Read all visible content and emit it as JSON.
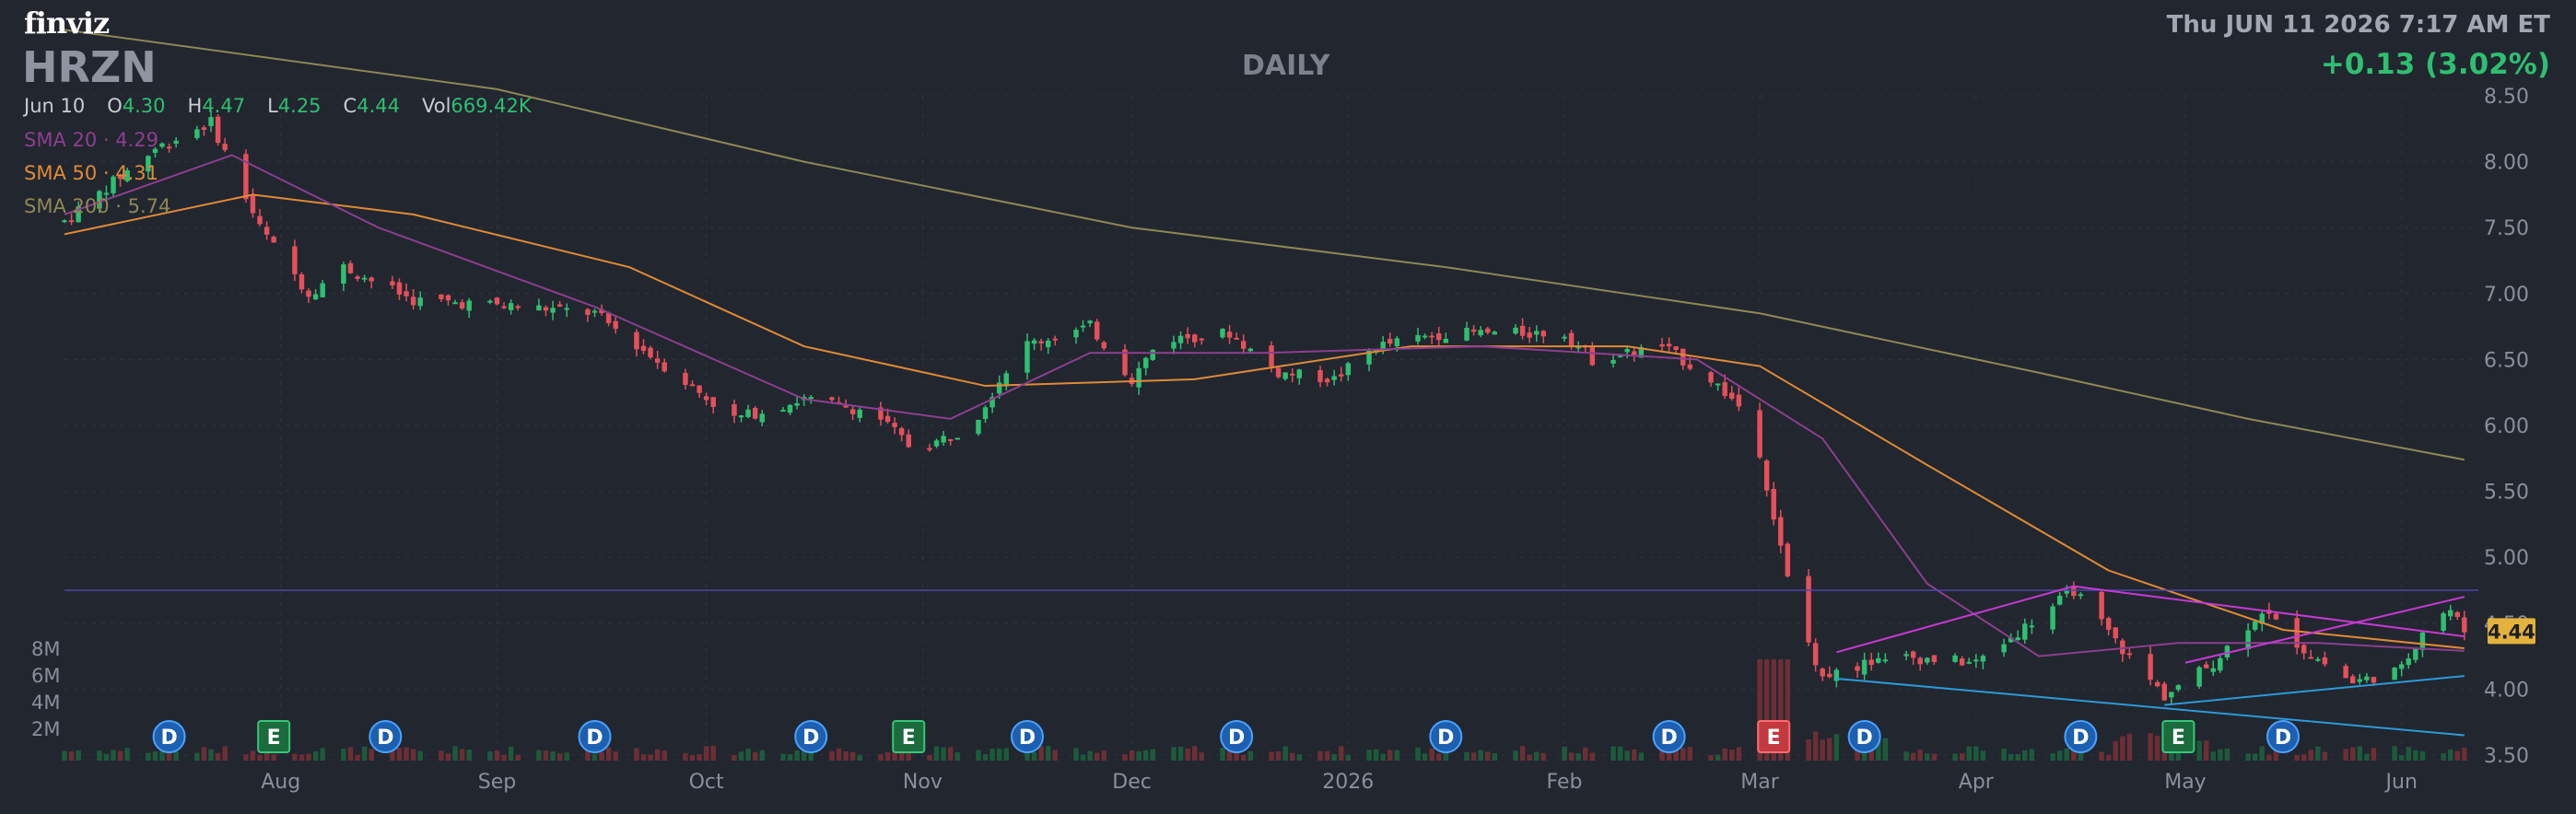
{
  "header": {
    "logo": "finviz",
    "ticker": "HRZN",
    "timeframe": "DAILY",
    "datetime": "Thu JUN 11 2026 7:17 AM ET",
    "change": "+0.13 (3.02%)"
  },
  "ohlc": {
    "date": "Jun 10",
    "open_label": "O",
    "open": "4.30",
    "high_label": "H",
    "high": "4.47",
    "low_label": "L",
    "low": "4.25",
    "close_label": "C",
    "close": "4.44",
    "vol_label": "Vol",
    "volume": "669.42K"
  },
  "indicators": [
    {
      "label": "SMA 20",
      "value": "4.29",
      "color": "#8c3f8f"
    },
    {
      "label": "SMA 50",
      "value": "4.31",
      "color": "#e08a35"
    },
    {
      "label": "SMA 200",
      "value": "5.74",
      "color": "#8f8755"
    }
  ],
  "colors": {
    "background": "#22262f",
    "up": "#2fbf71",
    "down": "#e4505b",
    "grid": "#2f333d",
    "horizontal_line": "#4b47a8",
    "upper_channel": "#c43ad1",
    "lower_channel": "#2c9ad6"
  },
  "chart_data": {
    "type": "candlestick",
    "ylim": [
      3.5,
      8.5
    ],
    "y_ticks": [
      "8.50",
      "8.00",
      "7.50",
      "7.00",
      "6.50",
      "6.00",
      "5.50",
      "5.00",
      "4.50",
      "4.00",
      "3.50"
    ],
    "x_ticks": [
      "Aug",
      "Sep",
      "Oct",
      "Nov",
      "Dec",
      "2026",
      "Feb",
      "Mar",
      "Apr",
      "May",
      "Jun"
    ],
    "volume_ticks": [
      "8M",
      "6M",
      "4M",
      "2M"
    ],
    "last_price": "4.44",
    "horizontal_line_price": 4.75,
    "price_path": [
      {
        "t": "Jul 1",
        "p": 7.55
      },
      {
        "t": "Jul 14",
        "p": 8.1
      },
      {
        "t": "Jul 22",
        "p": 8.3
      },
      {
        "t": "Jul 29",
        "p": 7.5
      },
      {
        "t": "Aug 5",
        "p": 7.0
      },
      {
        "t": "Aug 10",
        "p": 7.2
      },
      {
        "t": "Aug 20",
        "p": 6.95
      },
      {
        "t": "Sep 5",
        "p": 6.9
      },
      {
        "t": "Sep 15",
        "p": 6.85
      },
      {
        "t": "Sep 25",
        "p": 6.45
      },
      {
        "t": "Oct 5",
        "p": 6.05
      },
      {
        "t": "Oct 15",
        "p": 6.2
      },
      {
        "t": "Oct 25",
        "p": 6.1
      },
      {
        "t": "Oct 31",
        "p": 5.8
      },
      {
        "t": "Nov 8",
        "p": 6.0
      },
      {
        "t": "Nov 15",
        "p": 6.6
      },
      {
        "t": "Nov 25",
        "p": 6.75
      },
      {
        "t": "Dec 1",
        "p": 6.35
      },
      {
        "t": "Dec 5",
        "p": 6.65
      },
      {
        "t": "Dec 15",
        "p": 6.7
      },
      {
        "t": "Dec 22",
        "p": 6.4
      },
      {
        "t": "Dec 30",
        "p": 6.35
      },
      {
        "t": "Jan 5",
        "p": 6.6
      },
      {
        "t": "Jan 15",
        "p": 6.7
      },
      {
        "t": "Jan 25",
        "p": 6.7
      },
      {
        "t": "Feb 1",
        "p": 6.7
      },
      {
        "t": "Feb 5",
        "p": 6.5
      },
      {
        "t": "Feb 15",
        "p": 6.6
      },
      {
        "t": "Feb 22",
        "p": 6.35
      },
      {
        "t": "Feb 28",
        "p": 6.05
      },
      {
        "t": "Mar 3",
        "p": 5.3
      },
      {
        "t": "Mar 6",
        "p": 4.6
      },
      {
        "t": "Mar 10",
        "p": 4.1
      },
      {
        "t": "Mar 20",
        "p": 4.25
      },
      {
        "t": "Apr 1",
        "p": 4.2
      },
      {
        "t": "Apr 10",
        "p": 4.55
      },
      {
        "t": "Apr 15",
        "p": 4.75
      },
      {
        "t": "Apr 22",
        "p": 4.3
      },
      {
        "t": "Apr 28",
        "p": 3.95
      },
      {
        "t": "May 5",
        "p": 4.2
      },
      {
        "t": "May 12",
        "p": 4.6
      },
      {
        "t": "May 18",
        "p": 4.3
      },
      {
        "t": "May 25",
        "p": 4.05
      },
      {
        "t": "Jun 1",
        "p": 4.15
      },
      {
        "t": "Jun 5",
        "p": 4.55
      },
      {
        "t": "Jun 8",
        "p": 4.6
      },
      {
        "t": "Jun 10",
        "p": 4.44
      }
    ],
    "sma20_path": [
      {
        "t": "Jul 1",
        "p": 7.6
      },
      {
        "t": "Jul 25",
        "p": 8.05
      },
      {
        "t": "Aug 15",
        "p": 7.5
      },
      {
        "t": "Sep 15",
        "p": 6.9
      },
      {
        "t": "Oct 15",
        "p": 6.2
      },
      {
        "t": "Nov 5",
        "p": 6.05
      },
      {
        "t": "Nov 25",
        "p": 6.55
      },
      {
        "t": "Dec 20",
        "p": 6.55
      },
      {
        "t": "Jan 20",
        "p": 6.6
      },
      {
        "t": "Feb 20",
        "p": 6.5
      },
      {
        "t": "Mar 10",
        "p": 5.9
      },
      {
        "t": "Mar 25",
        "p": 4.8
      },
      {
        "t": "Apr 10",
        "p": 4.25
      },
      {
        "t": "Apr 30",
        "p": 4.35
      },
      {
        "t": "May 20",
        "p": 4.35
      },
      {
        "t": "Jun 10",
        "p": 4.29
      }
    ],
    "sma50_path": [
      {
        "t": "Jul 1",
        "p": 7.45
      },
      {
        "t": "Jul 28",
        "p": 7.75
      },
      {
        "t": "Aug 20",
        "p": 7.6
      },
      {
        "t": "Sep 20",
        "p": 7.2
      },
      {
        "t": "Oct 15",
        "p": 6.6
      },
      {
        "t": "Nov 10",
        "p": 6.3
      },
      {
        "t": "Dec 10",
        "p": 6.35
      },
      {
        "t": "Jan 10",
        "p": 6.6
      },
      {
        "t": "Feb 10",
        "p": 6.6
      },
      {
        "t": "Mar 1",
        "p": 6.45
      },
      {
        "t": "Mar 25",
        "p": 5.7
      },
      {
        "t": "Apr 20",
        "p": 4.9
      },
      {
        "t": "May 15",
        "p": 4.45
      },
      {
        "t": "Jun 10",
        "p": 4.31
      }
    ],
    "sma200_path": [
      {
        "t": "Jul 1",
        "p": 9.0
      },
      {
        "t": "Sep 1",
        "p": 8.55
      },
      {
        "t": "Oct 15",
        "p": 8.0
      },
      {
        "t": "Dec 1",
        "p": 7.5
      },
      {
        "t": "Jan 15",
        "p": 7.2
      },
      {
        "t": "Mar 1",
        "p": 6.85
      },
      {
        "t": "Apr 10",
        "p": 6.4
      },
      {
        "t": "May 10",
        "p": 6.05
      },
      {
        "t": "Jun 10",
        "p": 5.74
      }
    ],
    "upper_channel": [
      {
        "t": "Mar 12",
        "p": 4.28
      },
      {
        "t": "Apr 15",
        "p": 4.78
      },
      {
        "t": "Jun 10",
        "p": 4.4
      }
    ],
    "upper_channel_2": [
      {
        "t": "May 1",
        "p": 4.2
      },
      {
        "t": "Jun 10",
        "p": 4.7
      }
    ],
    "lower_channel": [
      {
        "t": "Mar 12",
        "p": 4.08
      },
      {
        "t": "Jun 10",
        "p": 3.65
      }
    ],
    "lower_channel_2": [
      {
        "t": "Apr 28",
        "p": 3.88
      },
      {
        "t": "Jun 10",
        "p": 4.1
      }
    ],
    "events": [
      {
        "t": "Jul 16",
        "label": "D",
        "kind": "dividend"
      },
      {
        "t": "Jul 31",
        "label": "E",
        "kind": "earnings"
      },
      {
        "t": "Aug 16",
        "label": "D",
        "kind": "dividend"
      },
      {
        "t": "Sep 15",
        "label": "D",
        "kind": "dividend"
      },
      {
        "t": "Oct 16",
        "label": "D",
        "kind": "dividend"
      },
      {
        "t": "Oct 30",
        "label": "E",
        "kind": "earnings"
      },
      {
        "t": "Nov 16",
        "label": "D",
        "kind": "dividend"
      },
      {
        "t": "Dec 16",
        "label": "D",
        "kind": "dividend"
      },
      {
        "t": "Jan 15",
        "label": "D",
        "kind": "dividend"
      },
      {
        "t": "Feb 16",
        "label": "D",
        "kind": "dividend"
      },
      {
        "t": "Mar 3",
        "label": "E",
        "kind": "earnings-negative"
      },
      {
        "t": "Mar 16",
        "label": "D",
        "kind": "dividend"
      },
      {
        "t": "Apr 16",
        "label": "D",
        "kind": "dividend"
      },
      {
        "t": "Apr 30",
        "label": "E",
        "kind": "earnings"
      },
      {
        "t": "May 15",
        "label": "D",
        "kind": "dividend"
      }
    ]
  }
}
